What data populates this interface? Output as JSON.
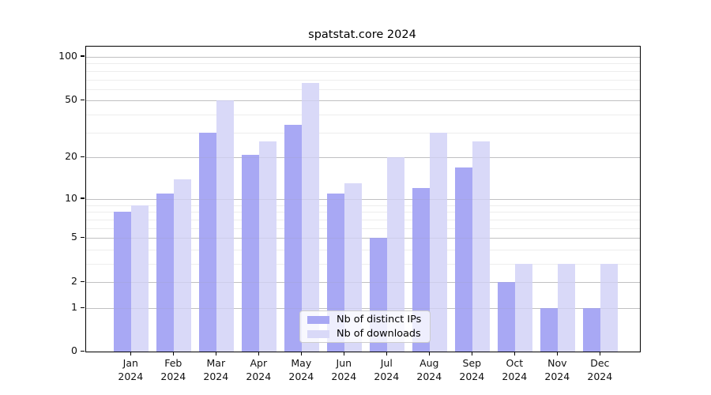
{
  "chart_data": {
    "type": "bar",
    "title": "spatstat.core 2024",
    "categories": [
      "Jan",
      "Feb",
      "Mar",
      "Apr",
      "May",
      "Jun",
      "Jul",
      "Aug",
      "Sep",
      "Oct",
      "Nov",
      "Dec"
    ],
    "year_label": "2024",
    "series": [
      {
        "name": "Nb of distinct IPs",
        "color": "#a8a8f4",
        "values": [
          8,
          11,
          30,
          21,
          34,
          11,
          5,
          12,
          17,
          2,
          1,
          1
        ]
      },
      {
        "name": "Nb of downloads",
        "color": "#d9d9f8",
        "values": [
          9,
          14,
          50,
          26,
          66,
          13,
          20,
          30,
          26,
          3,
          3,
          3
        ]
      }
    ],
    "y_axis": {
      "scale": "log1p",
      "major_ticks": [
        0,
        1,
        2,
        5,
        10,
        20,
        50,
        100
      ],
      "minor_ticks": [
        3,
        4,
        6,
        7,
        8,
        9,
        30,
        40,
        60,
        70,
        80,
        90
      ],
      "ylim_top_approx": 118
    },
    "xlabel": "",
    "ylabel": "",
    "grid": "both",
    "legend_position": "bottom-center",
    "colors": {
      "major_grid": "#c9c9c9",
      "minor_grid": "#ededed",
      "axis": "#000000"
    }
  }
}
